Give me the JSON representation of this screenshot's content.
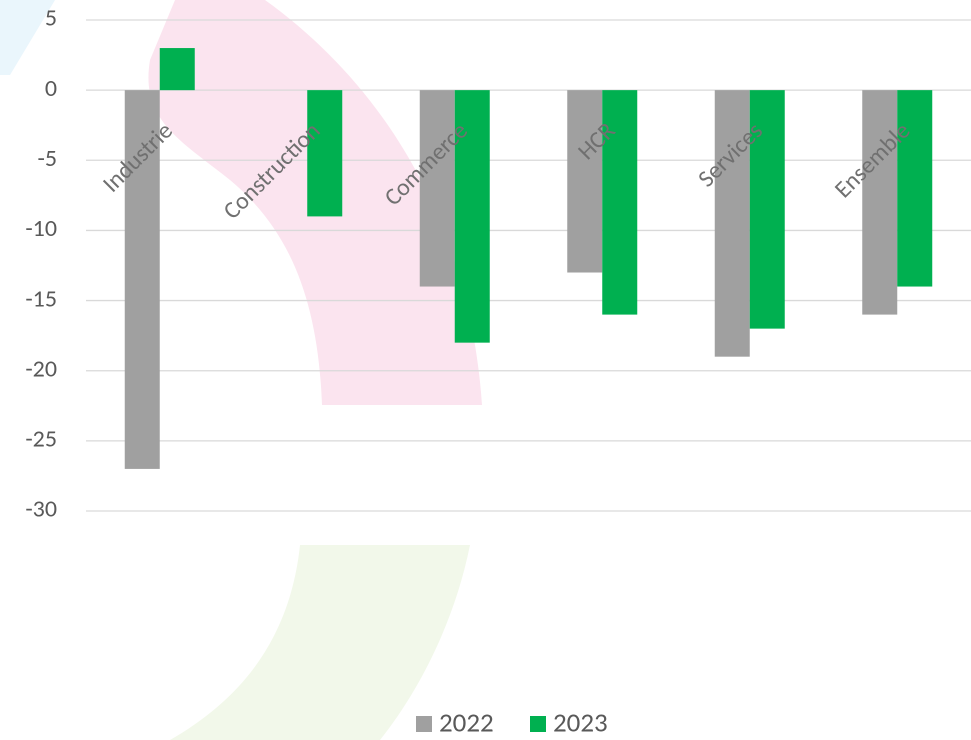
{
  "chart_data": {
    "type": "bar",
    "categories": [
      "Industrie",
      "Construction",
      "Commerce",
      "HCR",
      "Services",
      "Ensemble"
    ],
    "series": [
      {
        "name": "2022",
        "color": "#a0a0a0",
        "values": [
          -27,
          0,
          -14,
          -13,
          -19,
          -16
        ]
      },
      {
        "name": "2023",
        "color": "#00b050",
        "values": [
          3,
          -9,
          -18,
          -16,
          -17,
          -14
        ]
      }
    ],
    "ylim": [
      -30,
      5
    ],
    "yticks": [
      -30,
      -25,
      -20,
      -15,
      -10,
      -5,
      0,
      5
    ],
    "grid": true,
    "legend": "bottom"
  }
}
